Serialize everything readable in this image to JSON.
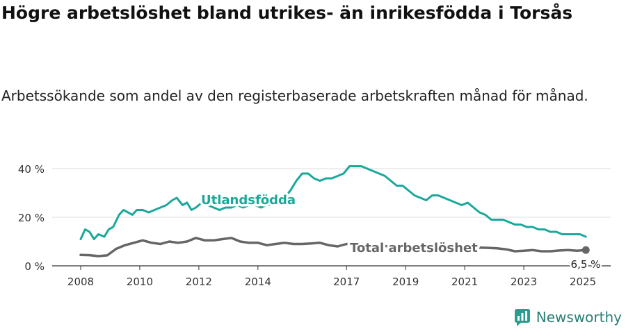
{
  "header": {
    "title": "Högre arbetslöshet bland utrikes- än inrikesfödda i Torsås",
    "subtitle": "Arbetssökande som andel av den registerbaserade arbetskraften månad för månad."
  },
  "brand": {
    "name": "Newsworthy",
    "color": "#2a9d8f"
  },
  "chart_data": {
    "type": "line",
    "title": "Högre arbetslöshet bland utrikes- än inrikesfödda i Torsås",
    "subtitle": "Arbetssökande som andel av den registerbaserade arbetskraften månad för månad.",
    "xlabel": "",
    "ylabel": "",
    "xlim": [
      2008,
      2025.5
    ],
    "ylim": [
      0,
      40
    ],
    "x_ticks": [
      2008,
      2010,
      2012,
      2014,
      2017,
      2019,
      2021,
      2023,
      2025
    ],
    "y_ticks": [
      0,
      20,
      40
    ],
    "y_tick_labels": [
      "0 %",
      "20 %",
      "40 %"
    ],
    "grid": true,
    "series": [
      {
        "name": "Utlandsfödda",
        "color": "#1aa89a",
        "x": [
          2008.0,
          2008.15,
          2008.3,
          2008.45,
          2008.6,
          2008.8,
          2008.95,
          2009.1,
          2009.3,
          2009.45,
          2009.6,
          2009.75,
          2009.9,
          2010.1,
          2010.3,
          2010.5,
          2010.7,
          2010.9,
          2011.1,
          2011.25,
          2011.45,
          2011.6,
          2011.75,
          2011.9,
          2012.1,
          2012.3,
          2012.5,
          2012.7,
          2012.9,
          2013.1,
          2013.3,
          2013.5,
          2013.7,
          2013.9,
          2014.1,
          2014.3,
          2014.5,
          2014.7,
          2014.9,
          2015.1,
          2015.3,
          2015.5,
          2015.7,
          2015.9,
          2016.1,
          2016.3,
          2016.5,
          2016.7,
          2016.9,
          2017.1,
          2017.3,
          2017.5,
          2017.7,
          2017.9,
          2018.1,
          2018.3,
          2018.5,
          2018.7,
          2018.9,
          2019.1,
          2019.3,
          2019.5,
          2019.7,
          2019.9,
          2020.1,
          2020.3,
          2020.5,
          2020.7,
          2020.9,
          2021.1,
          2021.3,
          2021.5,
          2021.7,
          2021.9,
          2022.1,
          2022.3,
          2022.5,
          2022.7,
          2022.9,
          2023.1,
          2023.3,
          2023.5,
          2023.7,
          2023.9,
          2024.1,
          2024.3,
          2024.5,
          2024.7,
          2024.9,
          2025.1
        ],
        "values": [
          11,
          15,
          14,
          11,
          13,
          12,
          15,
          16,
          21,
          23,
          22,
          21,
          23,
          23,
          22,
          23,
          24,
          25,
          27,
          28,
          25,
          26,
          23,
          24,
          26,
          25,
          24,
          23,
          24,
          24,
          25,
          24,
          25,
          25,
          24,
          25,
          25,
          26,
          28,
          31,
          35,
          38,
          38,
          36,
          35,
          36,
          36,
          37,
          38,
          41,
          41,
          41,
          40,
          39,
          38,
          37,
          35,
          33,
          33,
          31,
          29,
          28,
          27,
          29,
          29,
          28,
          27,
          26,
          25,
          26,
          24,
          22,
          21,
          19,
          19,
          19,
          18,
          17,
          17,
          16,
          16,
          15,
          15,
          14,
          14,
          13,
          13,
          13,
          13,
          12
        ]
      },
      {
        "name": "Total arbetslöshet",
        "color": "#666666",
        "x": [
          2008.0,
          2008.3,
          2008.6,
          2008.9,
          2009.2,
          2009.5,
          2009.8,
          2010.1,
          2010.4,
          2010.7,
          2011.0,
          2011.3,
          2011.6,
          2011.9,
          2012.2,
          2012.5,
          2012.8,
          2013.1,
          2013.4,
          2013.7,
          2014.0,
          2014.3,
          2014.6,
          2014.9,
          2015.2,
          2015.5,
          2015.8,
          2016.1,
          2016.4,
          2016.7,
          2017.0,
          2017.3,
          2017.6,
          2017.9,
          2018.2,
          2018.5,
          2018.8,
          2019.1,
          2019.4,
          2019.7,
          2020.0,
          2020.3,
          2020.6,
          2020.9,
          2021.2,
          2021.5,
          2021.8,
          2022.1,
          2022.4,
          2022.7,
          2023.0,
          2023.3,
          2023.6,
          2023.9,
          2024.2,
          2024.5,
          2024.8,
          2025.1
        ],
        "values": [
          4.5,
          4.4,
          4.0,
          4.3,
          7.0,
          8.5,
          9.5,
          10.5,
          9.5,
          9.0,
          10.0,
          9.5,
          10.0,
          11.5,
          10.5,
          10.5,
          11.0,
          11.5,
          10.0,
          9.5,
          9.5,
          8.5,
          9.0,
          9.5,
          9.0,
          9.0,
          9.2,
          9.5,
          8.5,
          8.0,
          9.0,
          8.8,
          8.6,
          8.4,
          8.2,
          8.0,
          8.0,
          7.8,
          7.6,
          7.5,
          7.6,
          7.8,
          7.5,
          7.3,
          7.4,
          7.5,
          7.4,
          7.2,
          6.8,
          6.0,
          6.2,
          6.5,
          6.0,
          6.0,
          6.3,
          6.5,
          6.2,
          6.5
        ]
      }
    ],
    "end_label": "6,5 %"
  }
}
